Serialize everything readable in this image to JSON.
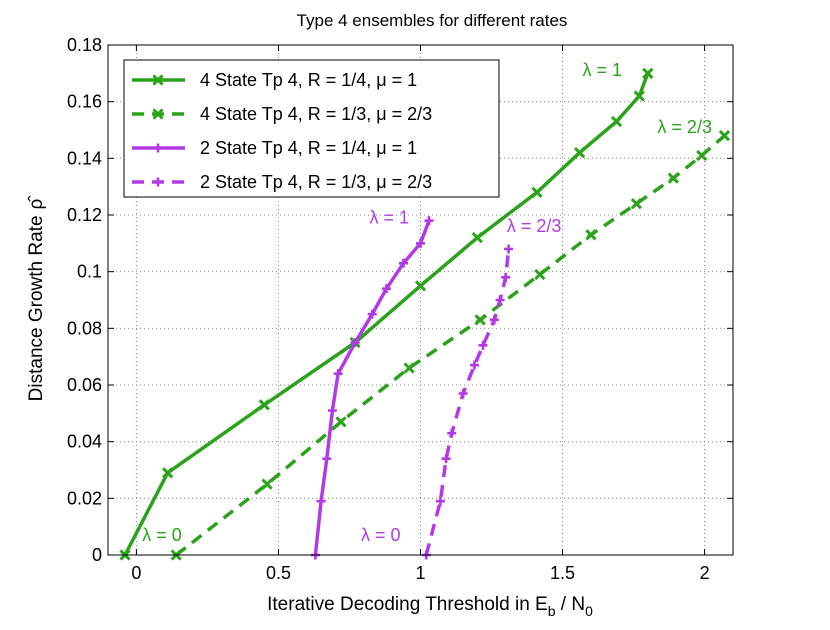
{
  "chart_data": {
    "type": "line",
    "title": "Type 4 ensembles for different rates",
    "xlabel": "Iterative Decoding Threshold in E_b / N_0",
    "xlabel_parts": {
      "pre": "Iterative Decoding Threshold in E",
      "sub1": "b",
      "mid": " / N",
      "sub2": "0"
    },
    "ylabel": "Distance Growth Rate",
    "ylabel_symbol": "ρ̂",
    "xlim": [
      -0.1,
      2.1
    ],
    "ylim": [
      0,
      0.18
    ],
    "xticks": [
      0,
      0.5,
      1,
      1.5,
      2
    ],
    "xtick_labels": [
      "0",
      "0.5",
      "1",
      "1.5",
      "2"
    ],
    "yticks": [
      0,
      0.02,
      0.04,
      0.06,
      0.08,
      0.1,
      0.12,
      0.14,
      0.16,
      0.18
    ],
    "ytick_labels": [
      "0",
      "0.02",
      "0.04",
      "0.06",
      "0.08",
      "0.1",
      "0.12",
      "0.14",
      "0.16",
      "0.18"
    ],
    "grid": true,
    "legend_position": "top-left",
    "colors": {
      "green": "#2aa31a",
      "purple": "#b23ae6",
      "axis": "#000000",
      "grid": "#8a8a8a"
    },
    "series": [
      {
        "name": "4 State Tp 4, R = 1/4, μ = 1",
        "color": "#2aa31a",
        "dash": "solid",
        "marker": "x",
        "x": [
          -0.04,
          0.11,
          0.45,
          0.77,
          1.0,
          1.2,
          1.41,
          1.56,
          1.69,
          1.77,
          1.8
        ],
        "y": [
          0.0,
          0.029,
          0.053,
          0.075,
          0.095,
          0.112,
          0.128,
          0.142,
          0.153,
          0.162,
          0.17
        ]
      },
      {
        "name": "4 State Tp 4, R = 1/3, μ = 2/3",
        "color": "#2aa31a",
        "dash": "dashed",
        "marker": "x",
        "x": [
          0.14,
          0.46,
          0.72,
          0.96,
          1.21,
          1.42,
          1.6,
          1.76,
          1.89,
          1.99,
          2.07
        ],
        "y": [
          0.0,
          0.025,
          0.047,
          0.066,
          0.083,
          0.099,
          0.113,
          0.124,
          0.133,
          0.141,
          0.148
        ]
      },
      {
        "name": "2 State Tp 4, R = 1/4, μ = 1",
        "color": "#b23ae6",
        "dash": "solid",
        "marker": "+",
        "x": [
          0.63,
          0.65,
          0.67,
          0.69,
          0.71,
          0.77,
          0.83,
          0.88,
          0.94,
          1.0,
          1.03
        ],
        "y": [
          0.0,
          0.019,
          0.034,
          0.051,
          0.064,
          0.075,
          0.085,
          0.094,
          0.103,
          0.11,
          0.118
        ]
      },
      {
        "name": "2 State Tp 4, R = 1/3, μ = 2/3",
        "color": "#b23ae6",
        "dash": "dashed",
        "marker": "+",
        "x": [
          1.02,
          1.07,
          1.09,
          1.11,
          1.15,
          1.19,
          1.22,
          1.26,
          1.28,
          1.3,
          1.31
        ],
        "y": [
          0.0,
          0.019,
          0.034,
          0.043,
          0.057,
          0.067,
          0.074,
          0.083,
          0.09,
          0.098,
          0.108
        ]
      }
    ],
    "annotations": [
      {
        "text": "λ = 1",
        "color": "#2aa31a",
        "x": 1.64,
        "y": 0.169
      },
      {
        "text": "λ = 2/3",
        "color": "#2aa31a",
        "x": 1.93,
        "y": 0.149
      },
      {
        "text": "λ = 0",
        "color": "#2aa31a",
        "x": 0.09,
        "y": 0.005
      },
      {
        "text": "λ = 1",
        "color": "#b23ae6",
        "x": 0.89,
        "y": 0.117
      },
      {
        "text": "λ = 2/3",
        "color": "#b23ae6",
        "x": 1.4,
        "y": 0.114
      },
      {
        "text": "λ = 0",
        "color": "#b23ae6",
        "x": 0.86,
        "y": 0.005
      }
    ]
  }
}
